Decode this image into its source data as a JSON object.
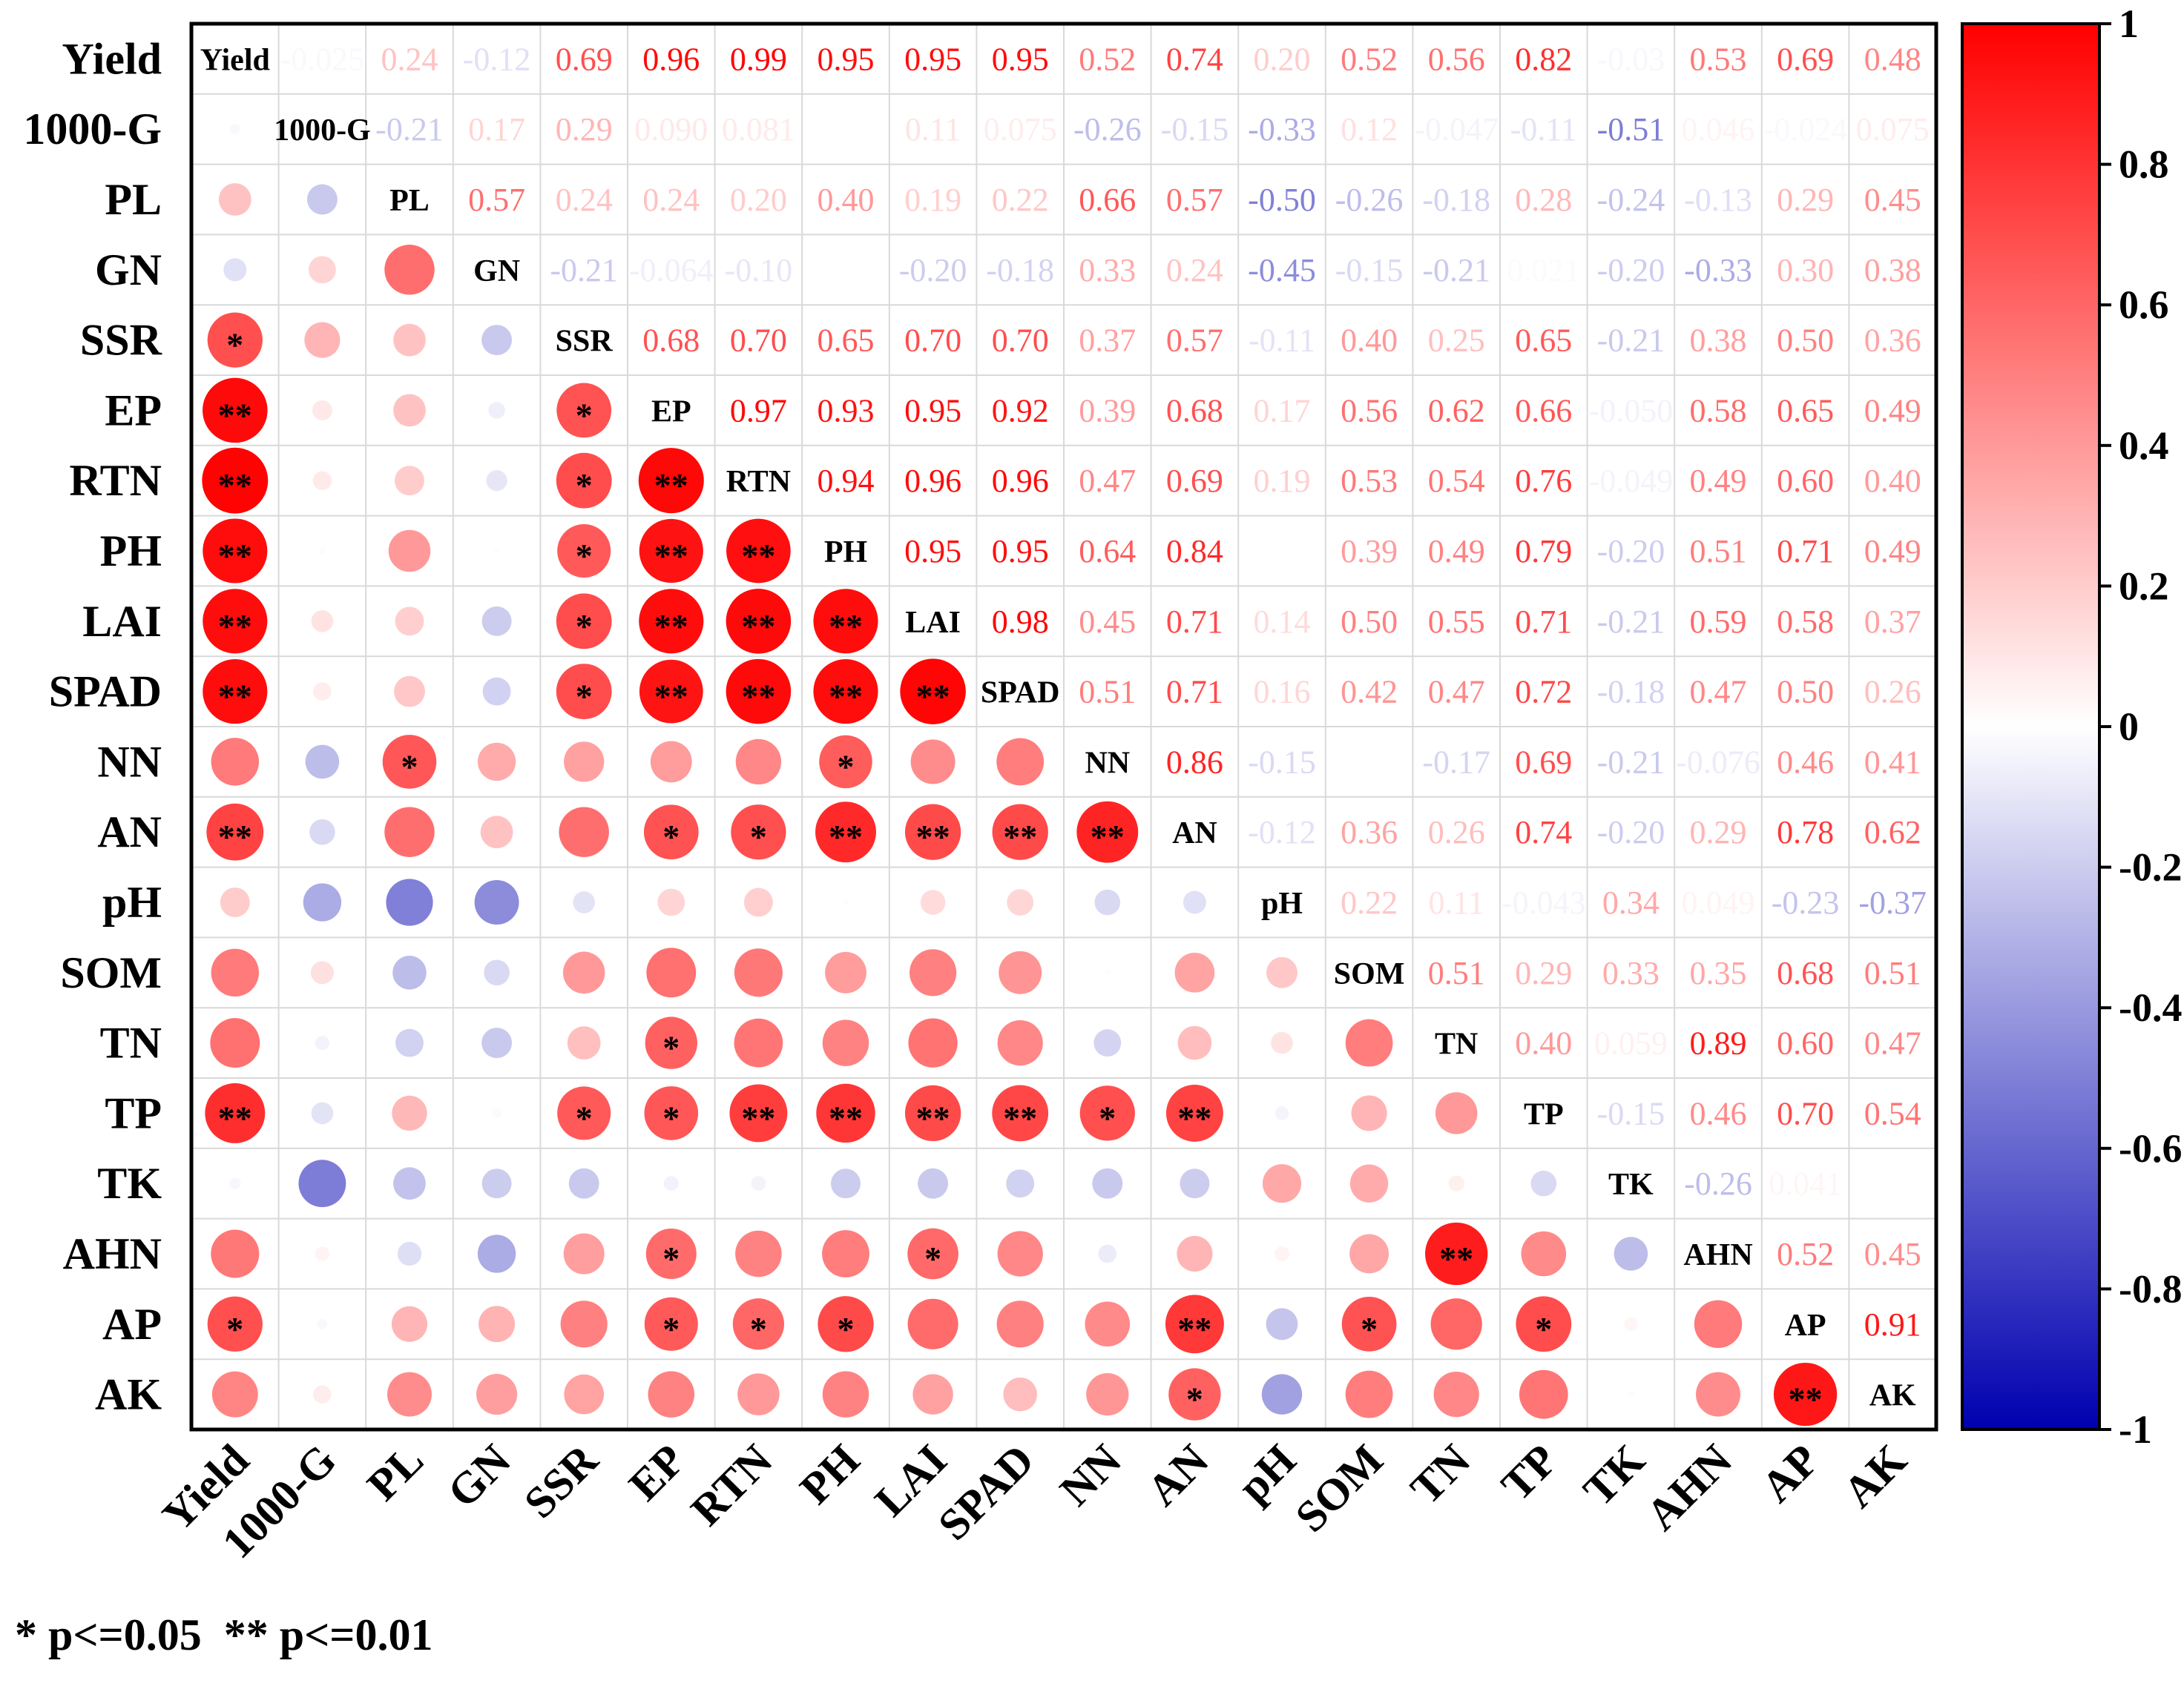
{
  "chart_data": {
    "type": "heatmap",
    "subtype": "correlation-matrix",
    "lower_triangle": "circles sized and colored by r, significance stars",
    "upper_triangle": "numeric r values colored by r",
    "variables": [
      "Yield",
      "1000-G",
      "PL",
      "GN",
      "SSR",
      "EP",
      "RTN",
      "PH",
      "LAI",
      "SPAD",
      "NN",
      "AN",
      "pH",
      "SOM",
      "TN",
      "TP",
      "TK",
      "AHN",
      "AP",
      "AK"
    ],
    "matrix": [
      [
        1,
        -0.025,
        0.24,
        -0.12,
        0.69,
        0.96,
        0.99,
        0.95,
        0.95,
        0.95,
        0.52,
        0.74,
        0.2,
        0.52,
        0.56,
        0.82,
        -0.03,
        0.53,
        0.69,
        0.48
      ],
      [
        -0.025,
        1,
        -0.21,
        0.17,
        0.29,
        0.09,
        0.081,
        -0.01,
        0.11,
        0.075,
        -0.26,
        -0.15,
        -0.33,
        0.12,
        -0.047,
        -0.11,
        -0.51,
        0.046,
        -0.024,
        0.075
      ],
      [
        0.24,
        -0.21,
        1,
        0.57,
        0.24,
        0.24,
        0.2,
        0.4,
        0.19,
        0.22,
        0.66,
        0.57,
        -0.5,
        -0.26,
        -0.18,
        0.28,
        -0.24,
        -0.13,
        0.29,
        0.45
      ],
      [
        -0.12,
        0.17,
        0.57,
        1,
        -0.21,
        -0.064,
        -0.1,
        0.01,
        -0.2,
        -0.18,
        0.33,
        0.24,
        -0.45,
        -0.15,
        -0.21,
        0.021,
        -0.2,
        -0.33,
        0.3,
        0.38
      ],
      [
        0.69,
        0.29,
        0.24,
        -0.21,
        1,
        0.68,
        0.7,
        0.65,
        0.7,
        0.7,
        0.37,
        0.57,
        -0.11,
        0.4,
        0.25,
        0.65,
        -0.21,
        0.38,
        0.5,
        0.36
      ],
      [
        0.96,
        0.09,
        0.24,
        -0.064,
        0.68,
        1,
        0.97,
        0.93,
        0.95,
        0.92,
        0.39,
        0.68,
        0.17,
        0.56,
        0.62,
        0.66,
        -0.05,
        0.58,
        0.65,
        0.49
      ],
      [
        0.99,
        0.081,
        0.2,
        -0.1,
        0.7,
        0.97,
        1,
        0.94,
        0.96,
        0.96,
        0.47,
        0.69,
        0.19,
        0.53,
        0.54,
        0.76,
        -0.049,
        0.49,
        0.6,
        0.4
      ],
      [
        0.95,
        -0.01,
        0.4,
        0.01,
        0.65,
        0.93,
        0.94,
        1,
        0.95,
        0.95,
        0.64,
        0.84,
        0.01,
        0.39,
        0.49,
        0.79,
        -0.2,
        0.51,
        0.71,
        0.49
      ],
      [
        0.95,
        0.11,
        0.19,
        -0.2,
        0.7,
        0.95,
        0.96,
        0.95,
        1,
        0.98,
        0.45,
        0.71,
        0.14,
        0.5,
        0.55,
        0.71,
        -0.21,
        0.59,
        0.58,
        0.37
      ],
      [
        0.95,
        0.075,
        0.22,
        -0.18,
        0.7,
        0.92,
        0.96,
        0.95,
        0.98,
        1,
        0.51,
        0.71,
        0.16,
        0.42,
        0.47,
        0.72,
        -0.18,
        0.47,
        0.5,
        0.26
      ],
      [
        0.52,
        -0.26,
        0.66,
        0.33,
        0.37,
        0.39,
        0.47,
        0.64,
        0.45,
        0.51,
        1,
        0.86,
        -0.15,
        0.01,
        -0.17,
        0.69,
        -0.21,
        -0.076,
        0.46,
        0.41
      ],
      [
        0.74,
        -0.15,
        0.57,
        0.24,
        0.57,
        0.68,
        0.69,
        0.84,
        0.71,
        0.71,
        0.86,
        1,
        -0.12,
        0.36,
        0.26,
        0.74,
        -0.2,
        0.29,
        0.78,
        0.62
      ],
      [
        0.2,
        -0.33,
        -0.5,
        -0.45,
        -0.11,
        0.17,
        0.19,
        0.01,
        0.14,
        0.16,
        -0.15,
        -0.12,
        1,
        0.22,
        0.11,
        -0.043,
        0.34,
        0.049,
        -0.23,
        -0.37
      ],
      [
        0.52,
        0.12,
        -0.26,
        -0.15,
        0.4,
        0.56,
        0.53,
        0.39,
        0.5,
        0.42,
        0.01,
        0.36,
        0.22,
        1,
        0.51,
        0.29,
        0.33,
        0.35,
        0.68,
        0.51
      ],
      [
        0.56,
        -0.047,
        -0.18,
        -0.21,
        0.25,
        0.62,
        0.54,
        0.49,
        0.55,
        0.47,
        -0.17,
        0.26,
        0.11,
        0.51,
        1,
        0.4,
        0.059,
        0.89,
        0.6,
        0.47
      ],
      [
        0.82,
        -0.11,
        0.28,
        0.021,
        0.65,
        0.66,
        0.76,
        0.79,
        0.71,
        0.72,
        0.69,
        0.74,
        -0.043,
        0.29,
        0.4,
        1,
        -0.15,
        0.46,
        0.7,
        0.54
      ],
      [
        -0.03,
        -0.51,
        -0.24,
        -0.2,
        -0.21,
        -0.05,
        -0.049,
        -0.2,
        -0.21,
        -0.18,
        -0.21,
        -0.2,
        0.34,
        0.33,
        0.059,
        -0.15,
        1,
        -0.26,
        0.041,
        -0.01
      ],
      [
        0.53,
        0.046,
        -0.13,
        -0.33,
        0.38,
        0.58,
        0.49,
        0.51,
        0.59,
        0.47,
        -0.076,
        0.29,
        0.049,
        0.35,
        0.89,
        0.46,
        -0.26,
        1,
        0.52,
        0.45
      ],
      [
        0.69,
        -0.024,
        0.29,
        0.3,
        0.5,
        0.65,
        0.6,
        0.71,
        0.58,
        0.5,
        0.46,
        0.78,
        -0.23,
        0.68,
        0.6,
        0.7,
        0.041,
        0.52,
        1,
        0.91
      ],
      [
        0.48,
        0.075,
        0.45,
        0.38,
        0.36,
        0.49,
        0.4,
        0.49,
        0.37,
        0.26,
        0.41,
        0.62,
        -0.37,
        0.51,
        0.47,
        0.54,
        -0.01,
        0.45,
        0.91,
        1
      ]
    ],
    "upper_labels": [
      [
        "",
        "-0.025",
        "0.24",
        "-0.12",
        "0.69",
        "0.96",
        "0.99",
        "0.95",
        "0.95",
        "0.95",
        "0.52",
        "0.74",
        "0.20",
        "0.52",
        "0.56",
        "0.82",
        "-0.03",
        "0.53",
        "0.69",
        "0.48"
      ],
      [
        "",
        "",
        "-0.21",
        "0.17",
        "0.29",
        "0.090",
        "0.081",
        "",
        "0.11",
        "0.075",
        "-0.26",
        "-0.15",
        "-0.33",
        "0.12",
        "-0.047",
        "-0.11",
        "-0.51",
        "0.046",
        "-0.024",
        "0.075"
      ],
      [
        "",
        "",
        "",
        "0.57",
        "0.24",
        "0.24",
        "0.20",
        "0.40",
        "0.19",
        "0.22",
        "0.66",
        "0.57",
        "-0.50",
        "-0.26",
        "-0.18",
        "0.28",
        "-0.24",
        "-0.13",
        "0.29",
        "0.45"
      ],
      [
        "",
        "",
        "",
        "",
        "-0.21",
        "-0.064",
        "-0.10",
        "",
        "-0.20",
        "-0.18",
        "0.33",
        "0.24",
        "-0.45",
        "-0.15",
        "-0.21",
        "0.021",
        "-0.20",
        "-0.33",
        "0.30",
        "0.38"
      ],
      [
        "",
        "",
        "",
        "",
        "",
        "0.68",
        "0.70",
        "0.65",
        "0.70",
        "0.70",
        "0.37",
        "0.57",
        "-0.11",
        "0.40",
        "0.25",
        "0.65",
        "-0.21",
        "0.38",
        "0.50",
        "0.36"
      ],
      [
        "",
        "",
        "",
        "",
        "",
        "",
        "0.97",
        "0.93",
        "0.95",
        "0.92",
        "0.39",
        "0.68",
        "0.17",
        "0.56",
        "0.62",
        "0.66",
        "-0.050",
        "0.58",
        "0.65",
        "0.49"
      ],
      [
        "",
        "",
        "",
        "",
        "",
        "",
        "",
        "0.94",
        "0.96",
        "0.96",
        "0.47",
        "0.69",
        "0.19",
        "0.53",
        "0.54",
        "0.76",
        "-0.049",
        "0.49",
        "0.60",
        "0.40"
      ],
      [
        "",
        "",
        "",
        "",
        "",
        "",
        "",
        "",
        "0.95",
        "0.95",
        "0.64",
        "0.84",
        "",
        "0.39",
        "0.49",
        "0.79",
        "-0.20",
        "0.51",
        "0.71",
        "0.49"
      ],
      [
        "",
        "",
        "",
        "",
        "",
        "",
        "",
        "",
        "",
        "0.98",
        "0.45",
        "0.71",
        "0.14",
        "0.50",
        "0.55",
        "0.71",
        "-0.21",
        "0.59",
        "0.58",
        "0.37"
      ],
      [
        "",
        "",
        "",
        "",
        "",
        "",
        "",
        "",
        "",
        "",
        "0.51",
        "0.71",
        "0.16",
        "0.42",
        "0.47",
        "0.72",
        "-0.18",
        "0.47",
        "0.50",
        "0.26"
      ],
      [
        "",
        "",
        "",
        "",
        "",
        "",
        "",
        "",
        "",
        "",
        "",
        "0.86",
        "-0.15",
        "",
        "-0.17",
        "0.69",
        "-0.21",
        "-0.076",
        "0.46",
        "0.41"
      ],
      [
        "",
        "",
        "",
        "",
        "",
        "",
        "",
        "",
        "",
        "",
        "",
        "",
        "-0.12",
        "0.36",
        "0.26",
        "0.74",
        "-0.20",
        "0.29",
        "0.78",
        "0.62"
      ],
      [
        "",
        "",
        "",
        "",
        "",
        "",
        "",
        "",
        "",
        "",
        "",
        "",
        "",
        "0.22",
        "0.11",
        "-0.043",
        "0.34",
        "0.049",
        "-0.23",
        "-0.37"
      ],
      [
        "",
        "",
        "",
        "",
        "",
        "",
        "",
        "",
        "",
        "",
        "",
        "",
        "",
        "",
        "0.51",
        "0.29",
        "0.33",
        "0.35",
        "0.68",
        "0.51"
      ],
      [
        "",
        "",
        "",
        "",
        "",
        "",
        "",
        "",
        "",
        "",
        "",
        "",
        "",
        "",
        "",
        "0.40",
        "0.059",
        "0.89",
        "0.60",
        "0.47"
      ],
      [
        "",
        "",
        "",
        "",
        "",
        "",
        "",
        "",
        "",
        "",
        "",
        "",
        "",
        "",
        "",
        "",
        "-0.15",
        "0.46",
        "0.70",
        "0.54"
      ],
      [
        "",
        "",
        "",
        "",
        "",
        "",
        "",
        "",
        "",
        "",
        "",
        "",
        "",
        "",
        "",
        "",
        "",
        "-0.26",
        "0.041",
        ""
      ],
      [
        "",
        "",
        "",
        "",
        "",
        "",
        "",
        "",
        "",
        "",
        "",
        "",
        "",
        "",
        "",
        "",
        "",
        "",
        "0.52",
        "0.45"
      ],
      [
        "",
        "",
        "",
        "",
        "",
        "",
        "",
        "",
        "",
        "",
        "",
        "",
        "",
        "",
        "",
        "",
        "",
        "",
        "",
        "0.91"
      ],
      [
        "",
        "",
        "",
        "",
        "",
        "",
        "",
        "",
        "",
        "",
        "",
        "",
        "",
        "",
        "",
        "",
        "",
        "",
        "",
        ""
      ]
    ],
    "significance": [
      [
        "",
        "",
        "",
        "",
        "",
        "",
        "",
        "",
        "",
        "",
        "",
        "",
        "",
        "",
        "",
        "",
        "",
        "",
        "",
        ""
      ],
      [
        "",
        "",
        "",
        "",
        "",
        "",
        "",
        "",
        "",
        "",
        "",
        "",
        "",
        "",
        "",
        "",
        "",
        "",
        "",
        ""
      ],
      [
        "",
        "",
        "",
        "",
        "",
        "",
        "",
        "",
        "",
        "",
        "",
        "",
        "",
        "",
        "",
        "",
        "",
        "",
        "",
        ""
      ],
      [
        "",
        "",
        "",
        "",
        "",
        "",
        "",
        "",
        "",
        "",
        "",
        "",
        "",
        "",
        "",
        "",
        "",
        "",
        "",
        ""
      ],
      [
        "*",
        "",
        "",
        "",
        "",
        "",
        "",
        "",
        "",
        "",
        "",
        "",
        "",
        "",
        "",
        "",
        "",
        "",
        "",
        ""
      ],
      [
        "**",
        "",
        "",
        "",
        "*",
        "",
        "",
        "",
        "",
        "",
        "",
        "",
        "",
        "",
        "",
        "",
        "",
        "",
        "",
        ""
      ],
      [
        "**",
        "",
        "",
        "",
        "*",
        "**",
        "",
        "",
        "",
        "",
        "",
        "",
        "",
        "",
        "",
        "",
        "",
        "",
        "",
        ""
      ],
      [
        "**",
        "",
        "",
        "",
        "*",
        "**",
        "**",
        "",
        "",
        "",
        "",
        "",
        "",
        "",
        "",
        "",
        "",
        "",
        "",
        ""
      ],
      [
        "**",
        "",
        "",
        "",
        "*",
        "**",
        "**",
        "**",
        "",
        "",
        "",
        "",
        "",
        "",
        "",
        "",
        "",
        "",
        "",
        ""
      ],
      [
        "**",
        "",
        "",
        "",
        "*",
        "**",
        "**",
        "**",
        "**",
        "",
        "",
        "",
        "",
        "",
        "",
        "",
        "",
        "",
        "",
        ""
      ],
      [
        "",
        "",
        "*",
        "",
        "",
        "",
        "",
        "*",
        "",
        "",
        "",
        "",
        "",
        "",
        "",
        "",
        "",
        "",
        "",
        ""
      ],
      [
        "**",
        "",
        "",
        "",
        "",
        "*",
        "*",
        "**",
        "**",
        "**",
        "**",
        "",
        "",
        "",
        "",
        "",
        "",
        "",
        "",
        ""
      ],
      [
        "",
        "",
        "",
        "",
        "",
        "",
        "",
        "",
        "",
        "",
        "",
        "",
        "",
        "",
        "",
        "",
        "",
        "",
        "",
        ""
      ],
      [
        "",
        "",
        "",
        "",
        "",
        "",
        "",
        "",
        "",
        "",
        "",
        "",
        "",
        "",
        "",
        "",
        "",
        "",
        "",
        ""
      ],
      [
        "",
        "",
        "",
        "",
        "",
        "*",
        "",
        "",
        "",
        "",
        "",
        "",
        "",
        "",
        "",
        "",
        "",
        "",
        "",
        ""
      ],
      [
        "**",
        "",
        "",
        "",
        "*",
        "*",
        "**",
        "**",
        "**",
        "**",
        "*",
        "**",
        "",
        "",
        "",
        "",
        "",
        "",
        "",
        ""
      ],
      [
        "",
        "",
        "",
        "",
        "",
        "",
        "",
        "",
        "",
        "",
        "",
        "",
        "",
        "",
        "",
        "",
        "",
        "",
        "",
        ""
      ],
      [
        "",
        "",
        "",
        "",
        "",
        "*",
        "",
        "",
        "*",
        "",
        "",
        "",
        "",
        "",
        "**",
        "",
        "",
        "",
        "",
        ""
      ],
      [
        "*",
        "",
        "",
        "",
        "",
        "*",
        "*",
        "*",
        "",
        "",
        "",
        "**",
        "",
        "*",
        "",
        "*",
        "",
        "",
        "",
        ""
      ],
      [
        "",
        "",
        "",
        "",
        "",
        "",
        "",
        "",
        "",
        "",
        "",
        "*",
        "",
        "",
        "",
        "",
        "",
        "",
        "**",
        ""
      ]
    ],
    "colorbar": {
      "min": -1,
      "max": 1,
      "ticks": [
        "1",
        "0.8",
        "0.6",
        "0.4",
        "0.2",
        "0",
        "-0.2",
        "-0.4",
        "-0.6",
        "-0.8",
        "-1"
      ],
      "colors": {
        "negative": "#0000b0",
        "zero": "#ffffff",
        "positive": "#ff0000"
      }
    },
    "footnote": "* p<=0.05  ** p<=0.01"
  }
}
